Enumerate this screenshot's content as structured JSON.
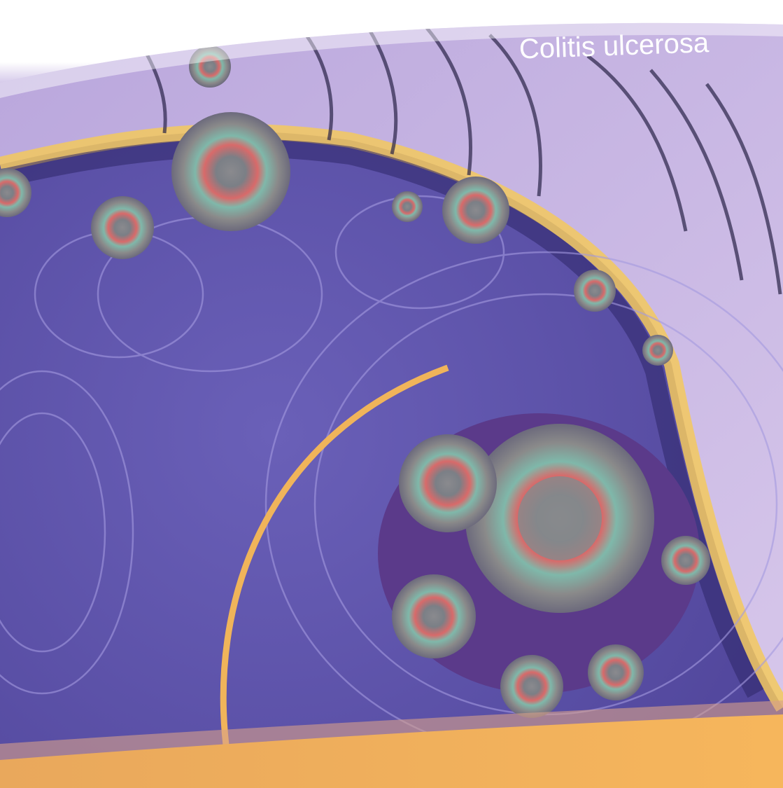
{
  "title": "Colitis ulcerosa"
}
